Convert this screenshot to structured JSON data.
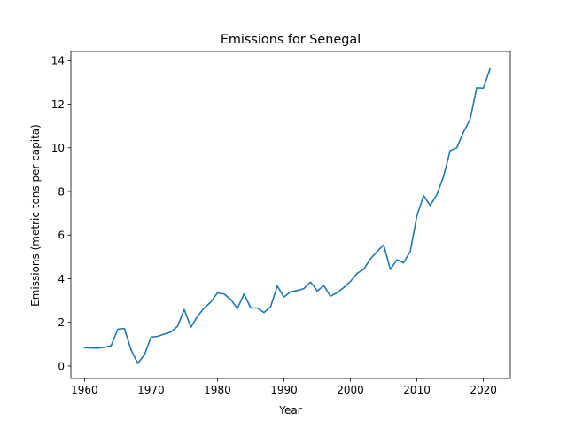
{
  "chart_data": {
    "type": "line",
    "title": "Emissions for Senegal",
    "xlabel": "Year",
    "ylabel": "Emissions (metric tons per capita)",
    "xlim": [
      1957.95,
      2024.05
    ],
    "ylim": [
      -0.57,
      14.42
    ],
    "xticks": [
      1960,
      1970,
      1980,
      1990,
      2000,
      2010,
      2020
    ],
    "yticks": [
      0,
      2,
      4,
      6,
      8,
      10,
      12,
      14
    ],
    "grid": false,
    "line_color": "#1f77b4",
    "series": [
      {
        "x": [
          1960,
          1961,
          1962,
          1963,
          1964,
          1965,
          1966,
          1967,
          1968,
          1969,
          1970,
          1971,
          1972,
          1973,
          1974,
          1975,
          1976,
          1977,
          1978,
          1979,
          1980,
          1981,
          1982,
          1983,
          1984,
          1985,
          1986,
          1987,
          1988,
          1989,
          1990,
          1991,
          1992,
          1993,
          1994,
          1995,
          1996,
          1997,
          1998,
          1999,
          2000,
          2001,
          2002,
          2003,
          2004,
          2005,
          2006,
          2007,
          2008,
          2009,
          2010,
          2011,
          2012,
          2013,
          2014,
          2015,
          2016,
          2017,
          2018,
          2019,
          2020,
          2021
        ],
        "values": [
          0.84,
          0.83,
          0.82,
          0.86,
          0.93,
          1.69,
          1.72,
          0.75,
          0.12,
          0.5,
          1.32,
          1.36,
          1.46,
          1.56,
          1.82,
          2.59,
          1.78,
          2.28,
          2.66,
          2.93,
          3.35,
          3.3,
          3.05,
          2.63,
          3.31,
          2.66,
          2.66,
          2.45,
          2.72,
          3.67,
          3.16,
          3.4,
          3.46,
          3.55,
          3.85,
          3.44,
          3.68,
          3.2,
          3.36,
          3.6,
          3.88,
          4.25,
          4.43,
          4.91,
          5.24,
          5.55,
          4.43,
          4.87,
          4.73,
          5.26,
          6.88,
          7.81,
          7.36,
          7.85,
          8.68,
          9.87,
          10.0,
          10.72,
          11.3,
          12.76,
          12.74,
          13.62
        ]
      }
    ]
  }
}
